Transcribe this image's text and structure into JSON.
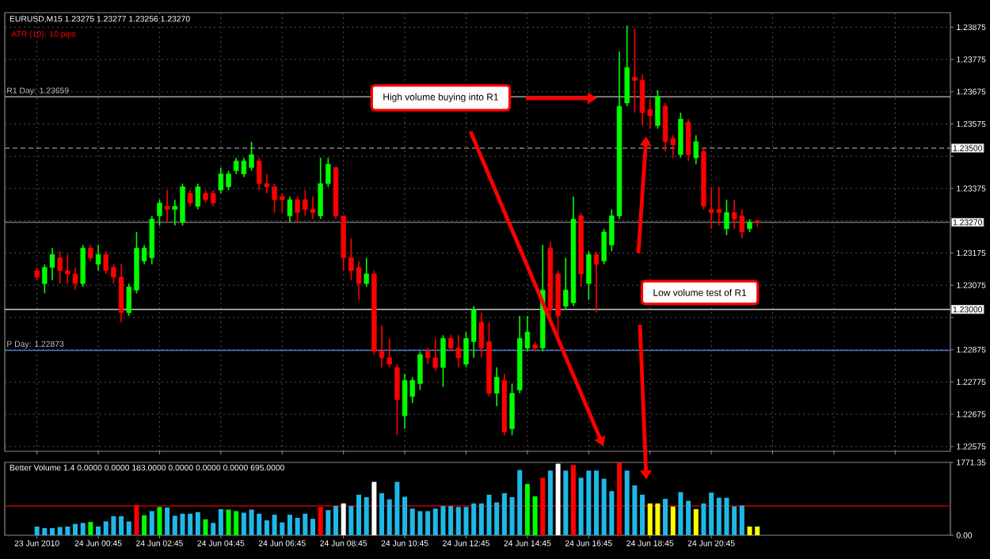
{
  "chart_data": [
    {
      "type": "candlestick",
      "title": "EURUSD,M15 1.23275 1.23277 1.23256 1.23270",
      "categories": [
        null,
        null,
        null,
        null,
        null,
        null,
        null,
        null,
        null,
        null,
        null,
        null,
        null,
        null,
        null,
        null,
        null,
        null,
        null,
        null,
        null,
        null,
        null,
        null,
        null,
        null,
        null,
        null,
        null,
        null,
        null,
        null,
        null,
        null,
        null,
        null,
        null,
        null,
        null,
        null,
        null,
        null,
        null,
        null,
        null,
        null,
        null,
        null,
        null,
        null,
        null,
        null,
        null,
        null,
        null,
        null,
        null,
        null,
        null,
        null,
        null,
        null,
        null,
        null,
        null,
        null,
        null,
        null,
        null,
        null,
        null,
        null,
        null,
        null,
        null,
        null,
        null,
        null,
        null,
        null,
        null,
        null,
        null,
        null,
        null,
        null,
        null,
        null,
        null,
        null,
        null,
        null,
        null,
        null,
        null,
        null,
        null,
        null,
        null,
        null,
        null,
        null,
        null,
        null,
        null,
        null,
        null,
        null,
        null,
        null,
        null,
        null,
        null,
        null,
        null,
        null,
        null,
        null,
        null,
        null
      ],
      "ohlc": [
        [
          1.2312,
          1.2313,
          1.2309,
          1.231
        ],
        [
          1.2308,
          1.2314,
          1.2305,
          1.2313
        ],
        [
          1.2313,
          1.2319,
          1.2309,
          1.2317
        ],
        [
          1.2316,
          1.2318,
          1.2308,
          1.2312
        ],
        [
          1.2312,
          1.2317,
          1.2308,
          1.2311
        ],
        [
          1.2311,
          1.2313,
          1.2306,
          1.2308
        ],
        [
          1.2308,
          1.232,
          1.2307,
          1.2319
        ],
        [
          1.2319,
          1.232,
          1.2315,
          1.2316
        ],
        [
          1.2314,
          1.232,
          1.2312,
          1.2317
        ],
        [
          1.2317,
          1.2318,
          1.2311,
          1.2312
        ],
        [
          1.2313,
          1.2314,
          1.2308,
          1.231
        ],
        [
          1.231,
          1.2314,
          1.2296,
          1.2299
        ],
        [
          1.2299,
          1.2308,
          1.2298,
          1.2307
        ],
        [
          1.2306,
          1.2324,
          1.2305,
          1.2319
        ],
        [
          1.2315,
          1.232,
          1.2314,
          1.2319
        ],
        [
          1.2316,
          1.2329,
          1.2314,
          1.2328
        ],
        [
          1.2329,
          1.2334,
          1.2326,
          1.2333
        ],
        [
          1.2332,
          1.2337,
          1.2327,
          1.2331
        ],
        [
          1.2331,
          1.2334,
          1.2326,
          1.2332
        ],
        [
          1.2327,
          1.2339,
          1.2326,
          1.2338
        ],
        [
          1.2336,
          1.2337,
          1.2332,
          1.2333
        ],
        [
          1.2332,
          1.2339,
          1.2331,
          1.2338
        ],
        [
          1.2336,
          1.2337,
          1.2333,
          1.2334
        ],
        [
          1.2336,
          1.2337,
          1.2332,
          1.2333
        ],
        [
          1.2337,
          1.2344,
          1.2336,
          1.2342
        ],
        [
          1.2338,
          1.2343,
          1.2337,
          1.2342
        ],
        [
          1.2343,
          1.2347,
          1.2342,
          1.2346
        ],
        [
          1.2342,
          1.2347,
          1.2341,
          1.2346
        ],
        [
          1.2344,
          1.2352,
          1.2343,
          1.2348
        ],
        [
          1.2346,
          1.2347,
          1.2337,
          1.2339
        ],
        [
          1.2339,
          1.2342,
          1.2336,
          1.2338
        ],
        [
          1.2338,
          1.2339,
          1.233,
          1.2334
        ],
        [
          1.2335,
          1.2336,
          1.233,
          1.2334
        ],
        [
          1.2329,
          1.2335,
          1.2327,
          1.2334
        ],
        [
          1.2334,
          1.2335,
          1.2327,
          1.233
        ],
        [
          1.2334,
          1.2337,
          1.2329,
          1.2331
        ],
        [
          1.2331,
          1.2335,
          1.2328,
          1.233
        ],
        [
          1.2329,
          1.2347,
          1.2328,
          1.2339
        ],
        [
          1.2339,
          1.2347,
          1.2338,
          1.2345
        ],
        [
          1.2344,
          1.2344,
          1.2328,
          1.2329
        ],
        [
          1.2329,
          1.2329,
          1.2312,
          1.2316
        ],
        [
          1.2316,
          1.2322,
          1.2309,
          1.2312
        ],
        [
          1.2313,
          1.2315,
          1.2303,
          1.2308
        ],
        [
          1.2308,
          1.2316,
          1.2307,
          1.2311
        ],
        [
          1.2311,
          1.2312,
          1.2286,
          1.2287
        ],
        [
          1.2287,
          1.2295,
          1.2282,
          1.2285
        ],
        [
          1.2285,
          1.2291,
          1.2282,
          1.2283
        ],
        [
          1.2282,
          1.2283,
          1.2261,
          1.2272
        ],
        [
          1.2267,
          1.228,
          1.2263,
          1.2278
        ],
        [
          1.2273,
          1.2279,
          1.2271,
          1.2278
        ],
        [
          1.2277,
          1.2287,
          1.2275,
          1.2286
        ],
        [
          1.2287,
          1.2288,
          1.2283,
          1.2285
        ],
        [
          1.2285,
          1.2291,
          1.2281,
          1.2282
        ],
        [
          1.2282,
          1.2292,
          1.2276,
          1.2291
        ],
        [
          1.2291,
          1.2292,
          1.2287,
          1.2288
        ],
        [
          1.2288,
          1.2292,
          1.2282,
          1.2285
        ],
        [
          1.2283,
          1.2293,
          1.2282,
          1.2291
        ],
        [
          1.229,
          1.2301,
          1.2285,
          1.23
        ],
        [
          1.2296,
          1.2299,
          1.2285,
          1.2288
        ],
        [
          1.229,
          1.2296,
          1.2273,
          1.2274
        ],
        [
          1.2274,
          1.2282,
          1.227,
          1.2279
        ],
        [
          1.2278,
          1.228,
          1.2261,
          1.2262
        ],
        [
          1.2263,
          1.2277,
          1.2261,
          1.2274
        ],
        [
          1.2275,
          1.2298,
          1.2274,
          1.2291
        ],
        [
          1.2288,
          1.2298,
          1.2287,
          1.2293
        ],
        [
          1.2289,
          1.229,
          1.2287,
          1.2288
        ],
        [
          1.2288,
          1.232,
          1.2287,
          1.2306
        ],
        [
          1.2319,
          1.2321,
          1.2298,
          1.23
        ],
        [
          1.2311,
          1.2312,
          1.2292,
          1.2298
        ],
        [
          1.2301,
          1.2316,
          1.23,
          1.2306
        ],
        [
          1.2302,
          1.2335,
          1.2301,
          1.2328
        ],
        [
          1.2329,
          1.233,
          1.2307,
          1.2311
        ],
        [
          1.2308,
          1.2318,
          1.2303,
          1.2317
        ],
        [
          1.2317,
          1.2318,
          1.2299,
          1.2314
        ],
        [
          1.2315,
          1.2325,
          1.2314,
          1.2324
        ],
        [
          1.232,
          1.2331,
          1.2318,
          1.2329
        ],
        [
          1.2329,
          1.238,
          1.2328,
          1.2363
        ],
        [
          1.2364,
          1.2388,
          1.2363,
          1.2375
        ],
        [
          1.2372,
          1.2387,
          1.2361,
          1.2371
        ],
        [
          1.2371,
          1.2373,
          1.2357,
          1.2361
        ],
        [
          1.2362,
          1.2365,
          1.2356,
          1.236
        ],
        [
          1.2357,
          1.2368,
          1.2356,
          1.2366
        ],
        [
          1.2363,
          1.2364,
          1.2349,
          1.2352
        ],
        [
          1.2353,
          1.2354,
          1.2347,
          1.2351
        ],
        [
          1.2348,
          1.2361,
          1.2347,
          1.2359
        ],
        [
          1.2358,
          1.2359,
          1.2346,
          1.2348
        ],
        [
          1.2347,
          1.2354,
          1.2345,
          1.2352
        ],
        [
          1.2349,
          1.235,
          1.2331,
          1.2332
        ],
        [
          1.2331,
          1.2338,
          1.2325,
          1.233
        ],
        [
          1.2331,
          1.2338,
          1.2326,
          1.233
        ],
        [
          1.2325,
          1.2334,
          1.2323,
          1.233
        ],
        [
          1.233,
          1.2334,
          1.2325,
          1.2328
        ],
        [
          1.2329,
          1.2331,
          1.2322,
          1.2324
        ],
        [
          1.2325,
          1.2328,
          1.2324,
          1.2327
        ],
        [
          1.23275,
          1.23277,
          1.23256,
          1.2327
        ],
        null,
        null,
        null,
        null,
        null,
        null,
        null,
        null,
        null,
        null,
        null,
        null,
        null,
        null,
        null,
        null,
        null,
        null,
        null,
        null,
        null,
        null,
        null,
        null,
        null
      ],
      "colors": [
        "#ff0000",
        "#00ff00",
        "#00ff00",
        "#ff0000",
        "#ff0000",
        "#ff0000",
        "#00ff00",
        "#ff0000",
        "#00ff00",
        "#ff0000",
        "#ff0000",
        "#ff0000",
        "#00ff00",
        "#00ff00",
        "#00ff00",
        "#00ff00",
        "#00ff00",
        "#ff0000",
        "#00ff00",
        "#00ff00",
        "#ff0000",
        "#00ff00",
        "#ff0000",
        "#ff0000",
        "#00ff00",
        "#00ff00",
        "#00ff00",
        "#00ff00",
        "#00ff00",
        "#ff0000",
        "#ff0000",
        "#ff0000",
        "#ff0000",
        "#00ff00",
        "#ff0000",
        "#ff0000",
        "#ff0000",
        "#00ff00",
        "#00ff00",
        "#ff0000",
        "#ff0000",
        "#ff0000",
        "#ff0000",
        "#00ff00",
        "#ff0000",
        "#ff0000",
        "#ff0000",
        "#ff0000",
        "#00ff00",
        "#00ff00",
        "#00ff00",
        "#ff0000",
        "#ff0000",
        "#00ff00",
        "#ff0000",
        "#ff0000",
        "#00ff00",
        "#00ff00",
        "#ff0000",
        "#ff0000",
        "#00ff00",
        "#ff0000",
        "#00ff00",
        "#00ff00",
        "#00ff00",
        "#ff0000",
        "#00ff00",
        "#ff0000",
        "#ff0000",
        "#00ff00",
        "#00ff00",
        "#ff0000",
        "#00ff00",
        "#ff0000",
        "#00ff00",
        "#00ff00",
        "#00ff00",
        "#00ff00",
        "#ff0000",
        "#ff0000",
        "#ff0000",
        "#00ff00",
        "#ff0000",
        "#ff0000",
        "#00ff00",
        "#ff0000",
        "#00ff00",
        "#ff0000",
        "#ff0000",
        "#ff0000",
        "#00ff00",
        "#ff0000",
        "#ff0000",
        "#00ff00",
        "#ff0000",
        null,
        null,
        null,
        null,
        null,
        null,
        null,
        null,
        null,
        null,
        null,
        null,
        null,
        null,
        null,
        null,
        null,
        null,
        null,
        null,
        null,
        null,
        null,
        null,
        null
      ],
      "ylim": [
        1.2256,
        1.2392
      ],
      "yticks": [
        1.22575,
        1.22675,
        1.22775,
        1.22875,
        {
          "value": 1.22975,
          "label": null
        },
        1.23075,
        1.23175,
        {
          "value": 1.23275,
          "label": null
        },
        1.23375,
        {
          "value": 1.23475,
          "label": null
        },
        1.23575,
        1.23675,
        1.23775,
        1.23875
      ],
      "grid": true,
      "tick_labels": "y",
      "ref_lines": [
        {
          "axis": "y",
          "value": 1.23659,
          "color": "#a0a0a0"
        },
        {
          "axis": "y",
          "value": 1.22873,
          "color": "#4a78c8"
        },
        {
          "axis": "y",
          "value": 1.235,
          "label": "1.23500",
          "color": "#9a9a9a",
          "line_style": "dashed"
        },
        {
          "axis": "y",
          "value": 1.2327,
          "label": "1.23270",
          "color": "#6e6e6e"
        },
        {
          "axis": "y",
          "value": 1.23,
          "label": "1.23000",
          "color": "#c8c8c8"
        }
      ],
      "annotations": [
        "ATR (10): 10 pips",
        {
          "text": "R1 Day: 1.23659",
          "y": 1.23659
        },
        {
          "text": "P Day: 1.22873",
          "y": 1.22873
        },
        "High volume buying into R1",
        "Low volume test of R1"
      ]
    },
    {
      "type": "bar",
      "title": "Better Volume 1.4 0.0000 0.0000 183.0000 0.0000 0.0000 0.0000 695.0000",
      "categories": [
        "23 Jun 2010",
        null,
        null,
        null,
        null,
        null,
        null,
        null,
        "24 Jun 00:45",
        null,
        null,
        null,
        null,
        null,
        null,
        null,
        "24 Jun 02:45",
        null,
        null,
        null,
        null,
        null,
        null,
        null,
        "24 Jun 04:45",
        null,
        null,
        null,
        null,
        null,
        null,
        null,
        "24 Jun 06:45",
        null,
        null,
        null,
        null,
        null,
        null,
        null,
        "24 Jun 08:45",
        null,
        null,
        null,
        null,
        null,
        null,
        null,
        "24 Jun 10:45",
        null,
        null,
        null,
        null,
        null,
        null,
        null,
        "24 Jun 12:45",
        null,
        null,
        null,
        null,
        null,
        null,
        null,
        "24 Jun 14:45",
        null,
        null,
        null,
        null,
        null,
        null,
        null,
        "24 Jun 16:45",
        null,
        null,
        null,
        null,
        null,
        null,
        null,
        "24 Jun 18:45",
        null,
        null,
        null,
        null,
        null,
        null,
        null,
        "24 Jun 20:45",
        null,
        null,
        null,
        null,
        null,
        null,
        null,
        null,
        null,
        null,
        null,
        null,
        null,
        null,
        null,
        null,
        null,
        null,
        null,
        null,
        null,
        null,
        null,
        null,
        null,
        null,
        null,
        null,
        null,
        null,
        null
      ],
      "values": [
        212,
        175,
        175,
        200,
        212,
        275,
        300,
        324,
        212,
        337,
        462,
        462,
        337,
        736,
        487,
        587,
        686,
        674,
        474,
        524,
        524,
        562,
        387,
        300,
        636,
        624,
        587,
        549,
        624,
        524,
        362,
        499,
        312,
        499,
        424,
        524,
        399,
        686,
        612,
        711,
        774,
        711,
        986,
        924,
        1298,
        1023,
        874,
        1298,
        936,
        649,
        587,
        587,
        649,
        711,
        711,
        686,
        686,
        774,
        774,
        986,
        799,
        1023,
        924,
        1585,
        1248,
        948,
        1398,
        1572,
        1740,
        1572,
        1710,
        1398,
        1572,
        1572,
        1373,
        1073,
        1771,
        1572,
        1211,
        986,
        774,
        774,
        886,
        699,
        1048,
        836,
        636,
        774,
        1036,
        911,
        911,
        699,
        724,
        212,
        212,
        null,
        null,
        null,
        null,
        null,
        null,
        null,
        null,
        null,
        null,
        null,
        null,
        null,
        null,
        null,
        null,
        null,
        null,
        null,
        null,
        null,
        null,
        null,
        null,
        null
      ],
      "colors": [
        "#1fb8e6",
        "#1fb8e6",
        "#1fb8e6",
        "#1fb8e6",
        "#1fb8e6",
        "#1fb8e6",
        "#1fb8e6",
        "#00ff00",
        "#1fb8e6",
        "#1fb8e6",
        "#1fb8e6",
        "#1fb8e6",
        "#1fb8e6",
        "#ff0000",
        "#00ff00",
        "#1fb8e6",
        "#00ff00",
        "#1fb8e6",
        "#1fb8e6",
        "#1fb8e6",
        "#1fb8e6",
        "#1fb8e6",
        "#00ff00",
        "#1fb8e6",
        "#1fb8e6",
        "#00ff00",
        "#00ff00",
        "#1fb8e6",
        "#1fb8e6",
        "#1fb8e6",
        "#1fb8e6",
        "#1fb8e6",
        "#1fb8e6",
        "#1fb8e6",
        "#1fb8e6",
        "#1fb8e6",
        "#1fb8e6",
        "#ff0000",
        "#1fb8e6",
        "#1fb8e6",
        "#ffffff",
        "#1fb8e6",
        "#1fb8e6",
        "#1fb8e6",
        "#ffffff",
        "#1fb8e6",
        "#1fb8e6",
        "#1fb8e6",
        "#1fb8e6",
        "#1fb8e6",
        "#1fb8e6",
        "#1fb8e6",
        "#1fb8e6",
        "#1fb8e6",
        "#1fb8e6",
        "#1fb8e6",
        "#1fb8e6",
        "#1fb8e6",
        "#1fb8e6",
        "#1fb8e6",
        "#1fb8e6",
        "#1fb8e6",
        "#1fb8e6",
        "#1fb8e6",
        "#00ff00",
        "#00ff00",
        "#ff0000",
        "#1fb8e6",
        "#ffffff",
        "#1fb8e6",
        "#ff0000",
        "#1fb8e6",
        "#1fb8e6",
        "#1fb8e6",
        "#1fb8e6",
        "#1fb8e6",
        "#ff0000",
        "#1fb8e6",
        "#1fb8e6",
        "#1fb8e6",
        "#ffff00",
        "#ffff00",
        "#1fb8e6",
        "#ffff00",
        "#1fb8e6",
        "#1fb8e6",
        "#ffff00",
        "#1fb8e6",
        "#1fb8e6",
        "#1fb8e6",
        "#1fb8e6",
        "#1fb8e6",
        "#1fb8e6",
        "#ffff00",
        "#ffff00",
        null,
        null,
        null,
        null,
        null,
        null,
        null,
        null,
        null,
        null,
        null,
        null,
        null,
        null,
        null,
        null,
        null,
        null,
        null,
        null,
        null,
        null,
        null,
        null,
        null
      ],
      "ylim": [
        0,
        1771.35
      ],
      "yticks": [
        {
          "value": 0,
          "label": "0.00"
        },
        {
          "value": 1771.35,
          "label": "1771.35"
        }
      ],
      "ref_lines": [
        {
          "axis": "y",
          "value": 711,
          "color": "#c00000"
        }
      ]
    }
  ]
}
